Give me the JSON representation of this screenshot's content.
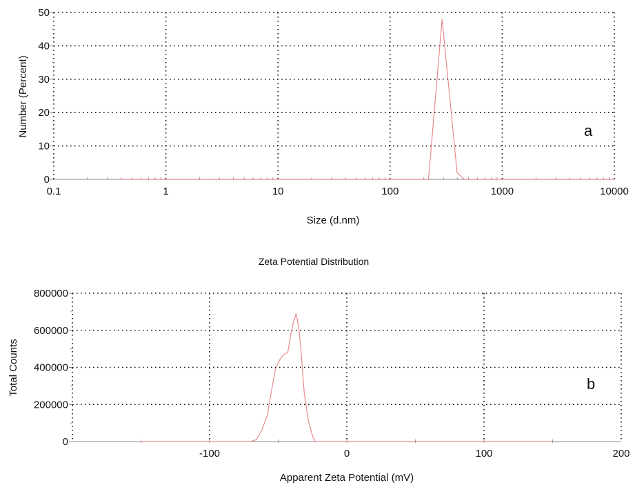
{
  "chart_data": [
    {
      "type": "line",
      "panel_label": "a",
      "title": "",
      "xlabel": "Size (d.nm)",
      "ylabel": "Number (Percent)",
      "xscale": "log",
      "xlim": [
        0.1,
        10000
      ],
      "ylim": [
        0,
        50
      ],
      "xticks": [
        0.1,
        1,
        10,
        100,
        1000,
        10000
      ],
      "xtick_labels": [
        "0.1",
        "1",
        "10",
        "100",
        "1000",
        "10000"
      ],
      "yticks": [
        0,
        10,
        20,
        30,
        40,
        50
      ],
      "ytick_labels": [
        "0",
        "10",
        "20",
        "30",
        "40",
        "50"
      ],
      "grid": true,
      "series": [
        {
          "color": "#e8898f",
          "x": [
            0.4,
            220,
            291,
            396,
            459,
            520,
            10000
          ],
          "y": [
            0,
            0,
            48,
            2,
            0,
            0,
            0
          ]
        }
      ]
    },
    {
      "type": "line",
      "panel_label": "b",
      "title": "Zeta Potential Distribution",
      "xlabel": "Apparent Zeta Potential (mV)",
      "ylabel": "Total Counts",
      "xscale": "linear",
      "xlim": [
        -200,
        200
      ],
      "ylim": [
        0,
        800000
      ],
      "xticks": [
        -100,
        0,
        100,
        200
      ],
      "xtick_labels": [
        "-100",
        "0",
        "100",
        "200"
      ],
      "yticks": [
        0,
        200000,
        400000,
        600000,
        800000
      ],
      "ytick_labels": [
        "0",
        "200000",
        "400000",
        "600000",
        "800000"
      ],
      "grid": true,
      "series": [
        {
          "color": "#e8898f",
          "x": [
            -150,
            -70,
            -66,
            -62,
            -58,
            -55,
            -52,
            -49,
            -46,
            -43,
            -41,
            -39,
            -37,
            -35,
            -33,
            -31,
            -28,
            -25,
            -23,
            150
          ],
          "y": [
            0,
            0,
            10000,
            60000,
            140000,
            270000,
            390000,
            440000,
            470000,
            480000,
            570000,
            640000,
            690000,
            620000,
            460000,
            260000,
            110000,
            30000,
            0,
            0
          ]
        }
      ]
    }
  ]
}
